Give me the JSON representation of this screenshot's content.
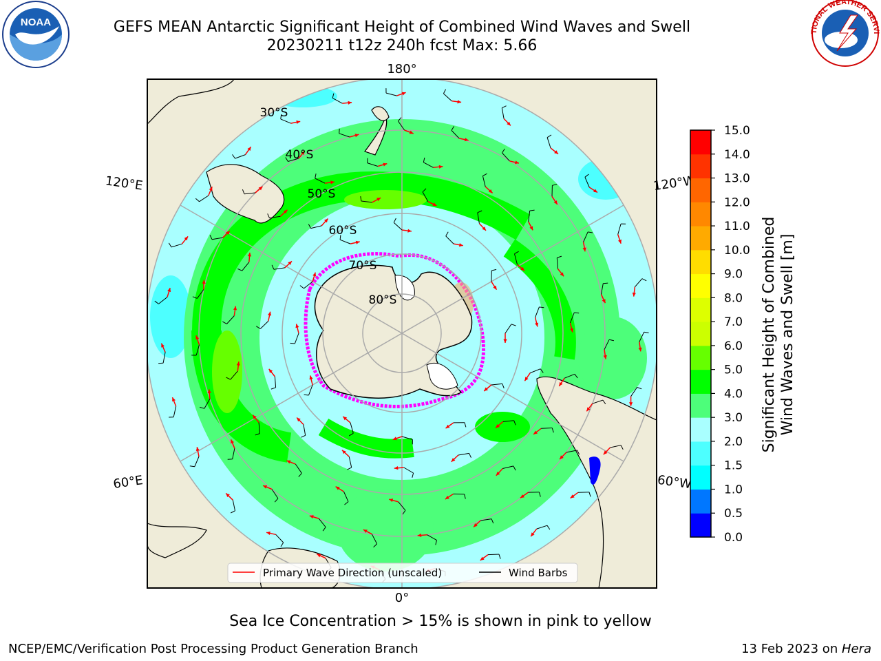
{
  "header": {
    "title_line1": "GEFS MEAN Antarctic Significant Height of Combined Wind Waves and Swell",
    "title_line2": "20230211 t12z 240h fcst   Max: 5.66"
  },
  "logos": {
    "noaa_text": "NOAA",
    "nws_text": "NATIONAL WEATHER SERVICE"
  },
  "map": {
    "projection": "south-polar-stereographic",
    "lon_labels": {
      "top": "180°",
      "bottom": "0°",
      "upper_left": "120°E",
      "upper_right": "120°W",
      "lower_left": "60°E",
      "lower_right": "60°W"
    },
    "lat_labels": [
      "30°S",
      "40°S",
      "50°S",
      "60°S",
      "70°S",
      "80°S"
    ],
    "legend": {
      "wave_label": "Primary Wave Direction (unscaled)",
      "wave_color": "#ff0000",
      "wind_label": "Wind Barbs",
      "wind_color": "#000000"
    },
    "colors": {
      "land": "#efecd9",
      "ocean_edge": "#a9ffff",
      "swell_low": "#4dfe7a",
      "swell_mid": "#00ff00",
      "swell_high": "#66ff00",
      "sea_ice": "#ff00ff"
    }
  },
  "colorbar": {
    "label_line1": "Significant Height of Combined",
    "label_line2": "Wind Waves and Swell [m]",
    "ticks": [
      "0.0",
      "0.5",
      "1.0",
      "1.5",
      "2.0",
      "3.0",
      "4.0",
      "5.0",
      "6.0",
      "7.0",
      "8.0",
      "9.0",
      "10.0",
      "11.0",
      "12.0",
      "13.0",
      "14.0",
      "15.0"
    ],
    "colors": [
      "#0000ff",
      "#0077ff",
      "#00ffff",
      "#4dffff",
      "#a9ffff",
      "#4dfe7a",
      "#00ff00",
      "#66ff00",
      "#ccff00",
      "#ddff00",
      "#ffff00",
      "#ffdd00",
      "#ffaa00",
      "#ff8800",
      "#ff6600",
      "#ff3300",
      "#ff0000"
    ]
  },
  "notes": {
    "sea_ice": "Sea Ice Concentration > 15% is shown in pink to yellow"
  },
  "footer": {
    "left": "NCEP/EMC/Verification Post Processing Product Generation Branch",
    "right_date": "13 Feb 2023 on ",
    "right_host": "Hera"
  }
}
